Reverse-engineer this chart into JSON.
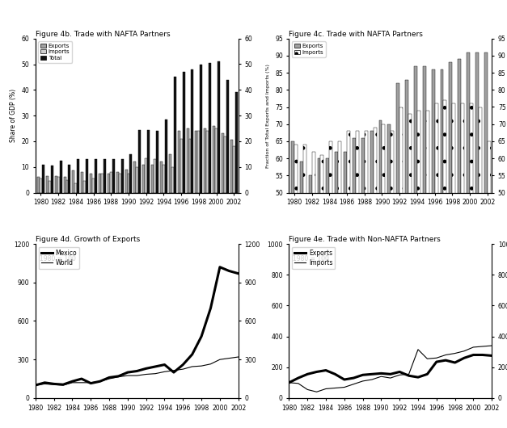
{
  "years": [
    1980,
    1981,
    1982,
    1983,
    1984,
    1985,
    1986,
    1987,
    1988,
    1989,
    1990,
    1991,
    1992,
    1993,
    1994,
    1995,
    1996,
    1997,
    1998,
    1999,
    2000,
    2001,
    2002
  ],
  "fig4b_exports": [
    6.0,
    6.5,
    6.5,
    6.0,
    8.5,
    8.0,
    7.5,
    7.5,
    7.5,
    8.0,
    9.0,
    12.0,
    11.0,
    11.0,
    12.0,
    15.0,
    24.0,
    25.0,
    24.0,
    25.0,
    26.0,
    23.0,
    20.5
  ],
  "fig4b_imports": [
    5.5,
    4.5,
    6.0,
    5.0,
    3.5,
    4.5,
    5.5,
    7.5,
    8.0,
    7.5,
    7.5,
    10.0,
    13.5,
    13.0,
    11.0,
    10.0,
    21.0,
    21.0,
    24.0,
    24.0,
    25.0,
    22.0,
    18.0
  ],
  "fig4b_total": [
    11.0,
    10.5,
    12.5,
    11.0,
    13.0,
    13.0,
    13.0,
    13.0,
    13.0,
    13.0,
    15.0,
    24.5,
    24.5,
    24.0,
    28.5,
    45.0,
    47.0,
    48.0,
    50.0,
    50.5,
    51.0,
    44.0,
    39.0
  ],
  "fig4c_exports": [
    65,
    59,
    55,
    60,
    60,
    62,
    62,
    66,
    66,
    68,
    71,
    70,
    82,
    83,
    87,
    87,
    86,
    86,
    88,
    89,
    91,
    91,
    91
  ],
  "fig4c_imports": [
    64,
    64,
    62,
    61,
    65,
    65,
    68,
    68,
    68,
    69,
    70,
    68,
    75,
    73,
    74,
    74,
    76,
    77,
    76,
    76,
    76,
    75,
    65
  ],
  "fig4d_years": [
    1980,
    1981,
    1982,
    1983,
    1984,
    1985,
    1986,
    1987,
    1988,
    1989,
    1990,
    1991,
    1992,
    1993,
    1994,
    1995,
    1996,
    1997,
    1998,
    1999,
    2000,
    2001,
    2002
  ],
  "fig4d_mexico": [
    100,
    120,
    110,
    105,
    130,
    150,
    115,
    130,
    160,
    170,
    200,
    210,
    230,
    245,
    260,
    200,
    260,
    340,
    480,
    700,
    1020,
    990,
    970
  ],
  "fig4d_world": [
    100,
    110,
    105,
    100,
    120,
    120,
    120,
    130,
    150,
    165,
    175,
    175,
    185,
    190,
    205,
    215,
    225,
    245,
    250,
    265,
    300,
    310,
    320
  ],
  "fig4e_years": [
    1980,
    1981,
    1982,
    1983,
    1984,
    1985,
    1986,
    1987,
    1988,
    1989,
    1990,
    1991,
    1992,
    1993,
    1994,
    1995,
    1996,
    1997,
    1998,
    1999,
    2000,
    2001,
    2002
  ],
  "fig4e_exports": [
    100,
    130,
    155,
    170,
    180,
    155,
    120,
    130,
    150,
    155,
    160,
    155,
    170,
    145,
    135,
    155,
    235,
    245,
    230,
    260,
    280,
    280,
    275
  ],
  "fig4e_imports": [
    100,
    95,
    55,
    40,
    60,
    65,
    70,
    90,
    110,
    120,
    140,
    130,
    150,
    155,
    315,
    255,
    260,
    280,
    290,
    305,
    330,
    335,
    340
  ],
  "bar_exports_color": "#a0a0a0",
  "bar_imports_color": "#d0d0d0",
  "bar_total_color": "#111111",
  "fig4c_exports_color": "#a0a0a0",
  "background_color": "#ffffff"
}
